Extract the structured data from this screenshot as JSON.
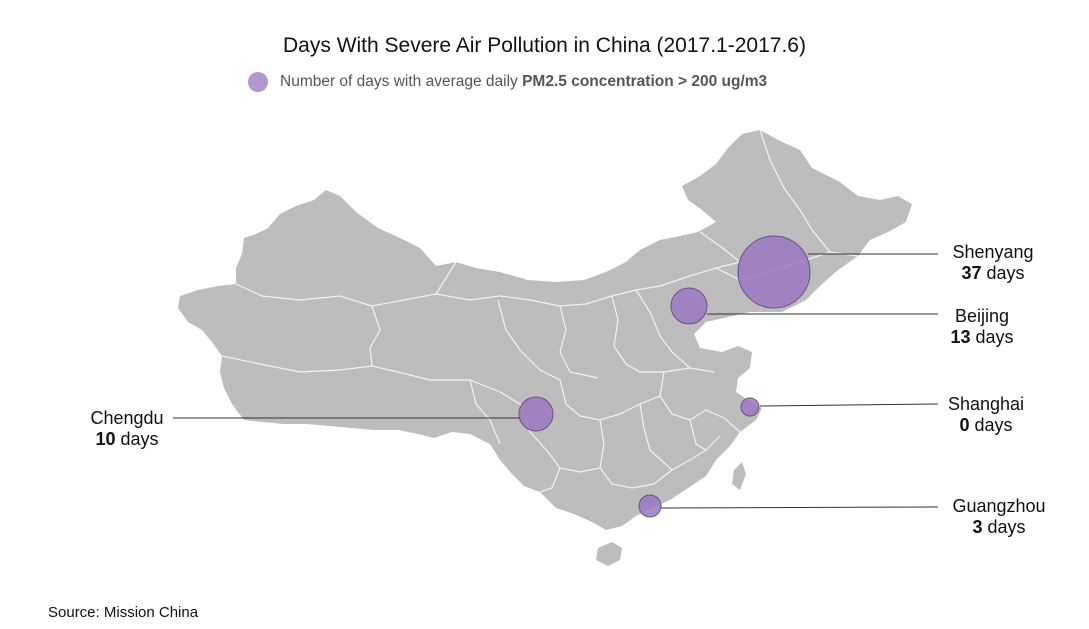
{
  "title": "Days With Severe Air Pollution in China (2017.1-2017.6)",
  "legend": {
    "prefix": "Number of days with average daily ",
    "bold": "PM2.5 concentration > 200 ug/m3",
    "color": "#b497cf"
  },
  "colors": {
    "land": "#bdbdbd",
    "border": "#f2f2f2",
    "bubble": "#9a78bf",
    "bubble_stroke": "#6a5088",
    "leader": "#333333"
  },
  "cities": [
    {
      "name": "Shenyang",
      "days": 37,
      "unit": "days"
    },
    {
      "name": "Beijing",
      "days": 13,
      "unit": "days"
    },
    {
      "name": "Shanghai",
      "days": 0,
      "unit": "days"
    },
    {
      "name": "Guangzhou",
      "days": 3,
      "unit": "days"
    },
    {
      "name": "Chengdu",
      "days": 10,
      "unit": "days"
    }
  ],
  "source": "Source: Mission China"
}
